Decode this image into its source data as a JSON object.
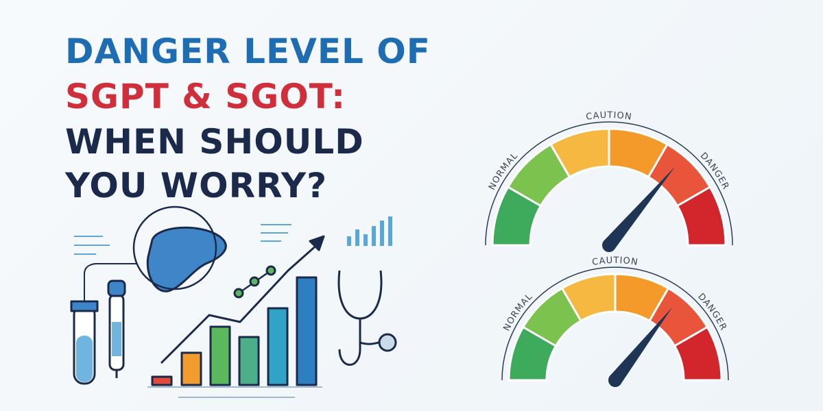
{
  "title": {
    "line1": "DANGER LEVEL OF",
    "line2": "SGPT & SGOT:",
    "line3": "WHEN SHOULD",
    "line4": "YOU WORRY?"
  },
  "gauges": [
    {
      "labels": [
        "NORMAL",
        "CAUTION",
        "DANGER"
      ]
    },
    {
      "labels": [
        "NORMAL",
        "CAUTION",
        "DANGER"
      ]
    }
  ]
}
